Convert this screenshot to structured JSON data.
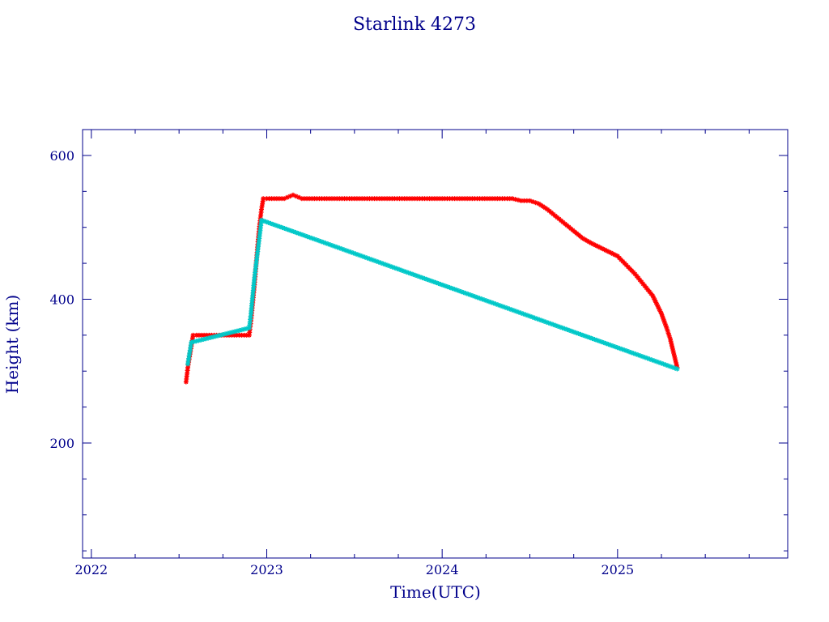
{
  "chart_data": {
    "type": "scatter",
    "title": "Starlink 4273",
    "xlabel": "Time(UTC)",
    "ylabel": "Height (km)",
    "xlim": [
      2021.95,
      2025.97
    ],
    "ylim": [
      40,
      636
    ],
    "x_ticks": [
      {
        "value": 2022,
        "label": "2022"
      },
      {
        "value": 2023,
        "label": "2023"
      },
      {
        "value": 2024,
        "label": "2024"
      },
      {
        "value": 2025,
        "label": "2025"
      }
    ],
    "y_ticks": [
      {
        "value": 200,
        "label": "200"
      },
      {
        "value": 400,
        "label": "400"
      },
      {
        "value": 600,
        "label": "600"
      }
    ],
    "x_minor_step": 0.25,
    "y_minor_step": 50,
    "grid": false,
    "colors": {
      "axis": "#00008b",
      "primary": "#ff0000",
      "secondary": "#00c8c8"
    },
    "series": [
      {
        "color": "#ff0000",
        "marker": "asterisk",
        "x": [
          2022.54,
          2022.55,
          2022.56,
          2022.57,
          2022.58,
          2022.6,
          2022.7,
          2022.8,
          2022.9,
          2022.91,
          2022.92,
          2022.93,
          2022.94,
          2022.95,
          2022.96,
          2022.97,
          2022.98,
          2023.0,
          2023.1,
          2023.15,
          2023.2,
          2023.3,
          2023.5,
          2023.7,
          2023.9,
          2024.0,
          2024.2,
          2024.4,
          2024.45,
          2024.5,
          2024.55,
          2024.6,
          2024.7,
          2024.8,
          2024.85,
          2024.9,
          2025.0,
          2025.1,
          2025.2,
          2025.25,
          2025.28,
          2025.3,
          2025.32,
          2025.34
        ],
        "y": [
          285,
          305,
          320,
          335,
          350,
          350,
          350,
          350,
          350,
          370,
          395,
          420,
          450,
          480,
          505,
          525,
          540,
          540,
          540,
          545,
          540,
          540,
          540,
          540,
          540,
          540,
          540,
          540,
          537,
          537,
          533,
          525,
          505,
          485,
          478,
          472,
          460,
          435,
          405,
          380,
          360,
          345,
          325,
          305
        ]
      },
      {
        "color": "#00c8c8",
        "marker": "asterisk",
        "x": [
          2022.55,
          2022.56,
          2022.57,
          2022.9,
          2022.91,
          2022.93,
          2022.95,
          2022.97,
          2025.34
        ],
        "y": [
          310,
          325,
          340,
          360,
          380,
          430,
          470,
          510,
          303
        ]
      }
    ]
  }
}
